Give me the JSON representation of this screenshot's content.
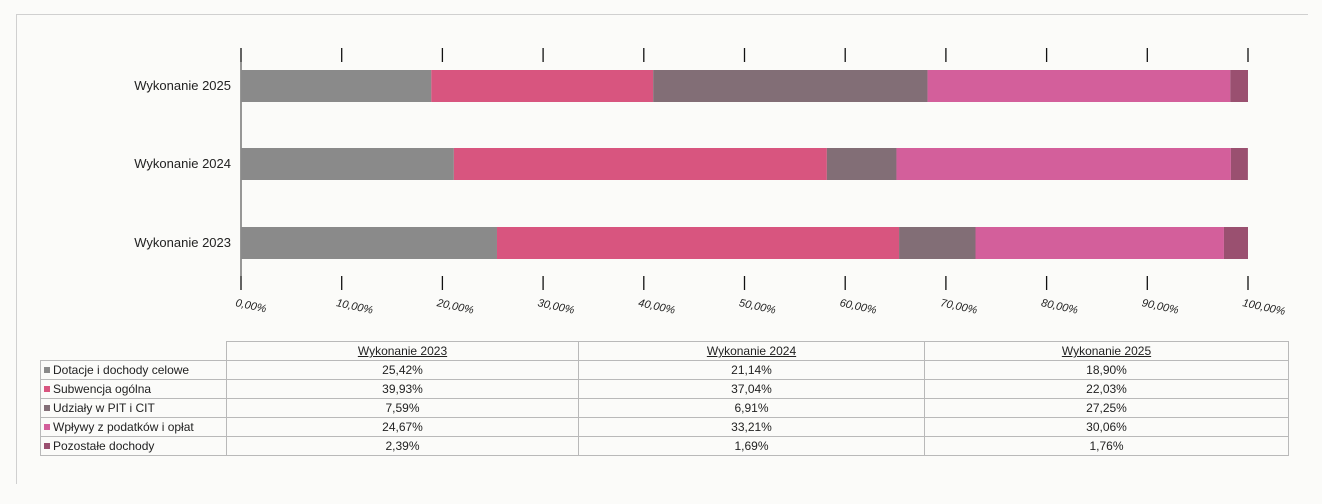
{
  "chart_data": {
    "type": "bar",
    "orientation": "horizontal",
    "stacked": true,
    "percent": true,
    "title": "",
    "xlabel": "",
    "ylabel": "",
    "categories": [
      "Wykonanie 2025",
      "Wykonanie 2024",
      "Wykonanie 2023"
    ],
    "xlim": [
      0,
      100
    ],
    "x_ticks": [
      "0,00%",
      "10,00%",
      "20,00%",
      "30,00%",
      "40,00%",
      "50,00%",
      "60,00%",
      "70,00%",
      "80,00%",
      "90,00%",
      "100,00%"
    ],
    "series": [
      {
        "name": "Dotacje i dochody celowe",
        "color": "#8a8a8a",
        "values": [
          18.9,
          21.14,
          25.42
        ]
      },
      {
        "name": "Subwencja ogólna",
        "color": "#d8557f",
        "values": [
          22.03,
          37.04,
          39.93
        ]
      },
      {
        "name": "Udziały w PIT i CIT",
        "color": "#826e76",
        "values": [
          27.25,
          6.91,
          7.59
        ]
      },
      {
        "name": "Wpływy z podatków i opłat",
        "color": "#d35f9b",
        "values": [
          30.06,
          33.21,
          24.67
        ]
      },
      {
        "name": "Pozostałe dochody",
        "color": "#9a5070",
        "values": [
          1.76,
          1.69,
          2.39
        ]
      }
    ],
    "legend": "table-below",
    "grid": false
  },
  "table": {
    "columns": [
      "Wykonanie 2023",
      "Wykonanie 2024",
      "Wykonanie 2025"
    ],
    "rows": [
      {
        "label": "Dotacje i dochody celowe",
        "values": [
          "25,42%",
          "21,14%",
          "18,90%"
        ]
      },
      {
        "label": "Subwencja ogólna",
        "values": [
          "39,93%",
          "37,04%",
          "22,03%"
        ]
      },
      {
        "label": "Udziały w PIT i CIT",
        "values": [
          "7,59%",
          "6,91%",
          "27,25%"
        ]
      },
      {
        "label": "Wpływy z podatków i opłat",
        "values": [
          "24,67%",
          "33,21%",
          "30,06%"
        ]
      },
      {
        "label": "Pozostałe dochody",
        "values": [
          "2,39%",
          "1,69%",
          "1,76%"
        ]
      }
    ]
  }
}
